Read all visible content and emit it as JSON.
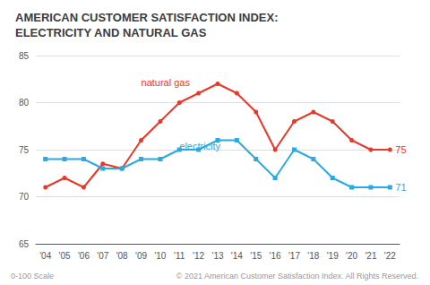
{
  "chart_data": {
    "type": "line",
    "title": "AMERICAN CUSTOMER SATISFACTION INDEX:\nELECTRICITY AND NATURAL GAS",
    "categories": [
      "'04",
      "'05",
      "'06",
      "'07",
      "'08",
      "'09",
      "'10",
      "'11",
      "'12",
      "'13",
      "'14",
      "'15",
      "'16",
      "'17",
      "'18",
      "'19",
      "'20",
      "'21",
      "'22"
    ],
    "series": [
      {
        "name": "natural gas",
        "color": "#e8382a",
        "marker": "circle",
        "values": [
          71,
          72,
          71,
          73.5,
          73,
          76,
          78,
          80,
          81,
          82,
          81,
          79,
          75,
          78,
          79,
          78,
          76,
          75,
          75
        ]
      },
      {
        "name": "electricity",
        "color": "#29abe2",
        "marker": "square",
        "values": [
          74,
          74,
          74,
          73,
          73,
          74,
          74,
          75,
          75,
          76,
          76,
          74,
          72,
          75,
          74,
          72,
          71,
          71,
          71
        ]
      }
    ],
    "ylim": [
      65,
      85
    ],
    "yticks": [
      65,
      70,
      75,
      80,
      85
    ],
    "grid": true,
    "annotations": [
      {
        "text": "natural gas",
        "x": "'09",
        "y": 81.5,
        "color": "#e8382a"
      },
      {
        "text": "electricity",
        "x": "'11",
        "y": 74.8,
        "color": "#29abe2"
      },
      {
        "text": "75",
        "x": "'22",
        "y": 75,
        "color": "#e8382a"
      },
      {
        "text": "71",
        "x": "'22",
        "y": 71,
        "color": "#29abe2"
      }
    ],
    "footnotes": [
      "0-100 Scale",
      "© 2021 American Customer Satisfaction Index. All Rights Reserved."
    ]
  }
}
